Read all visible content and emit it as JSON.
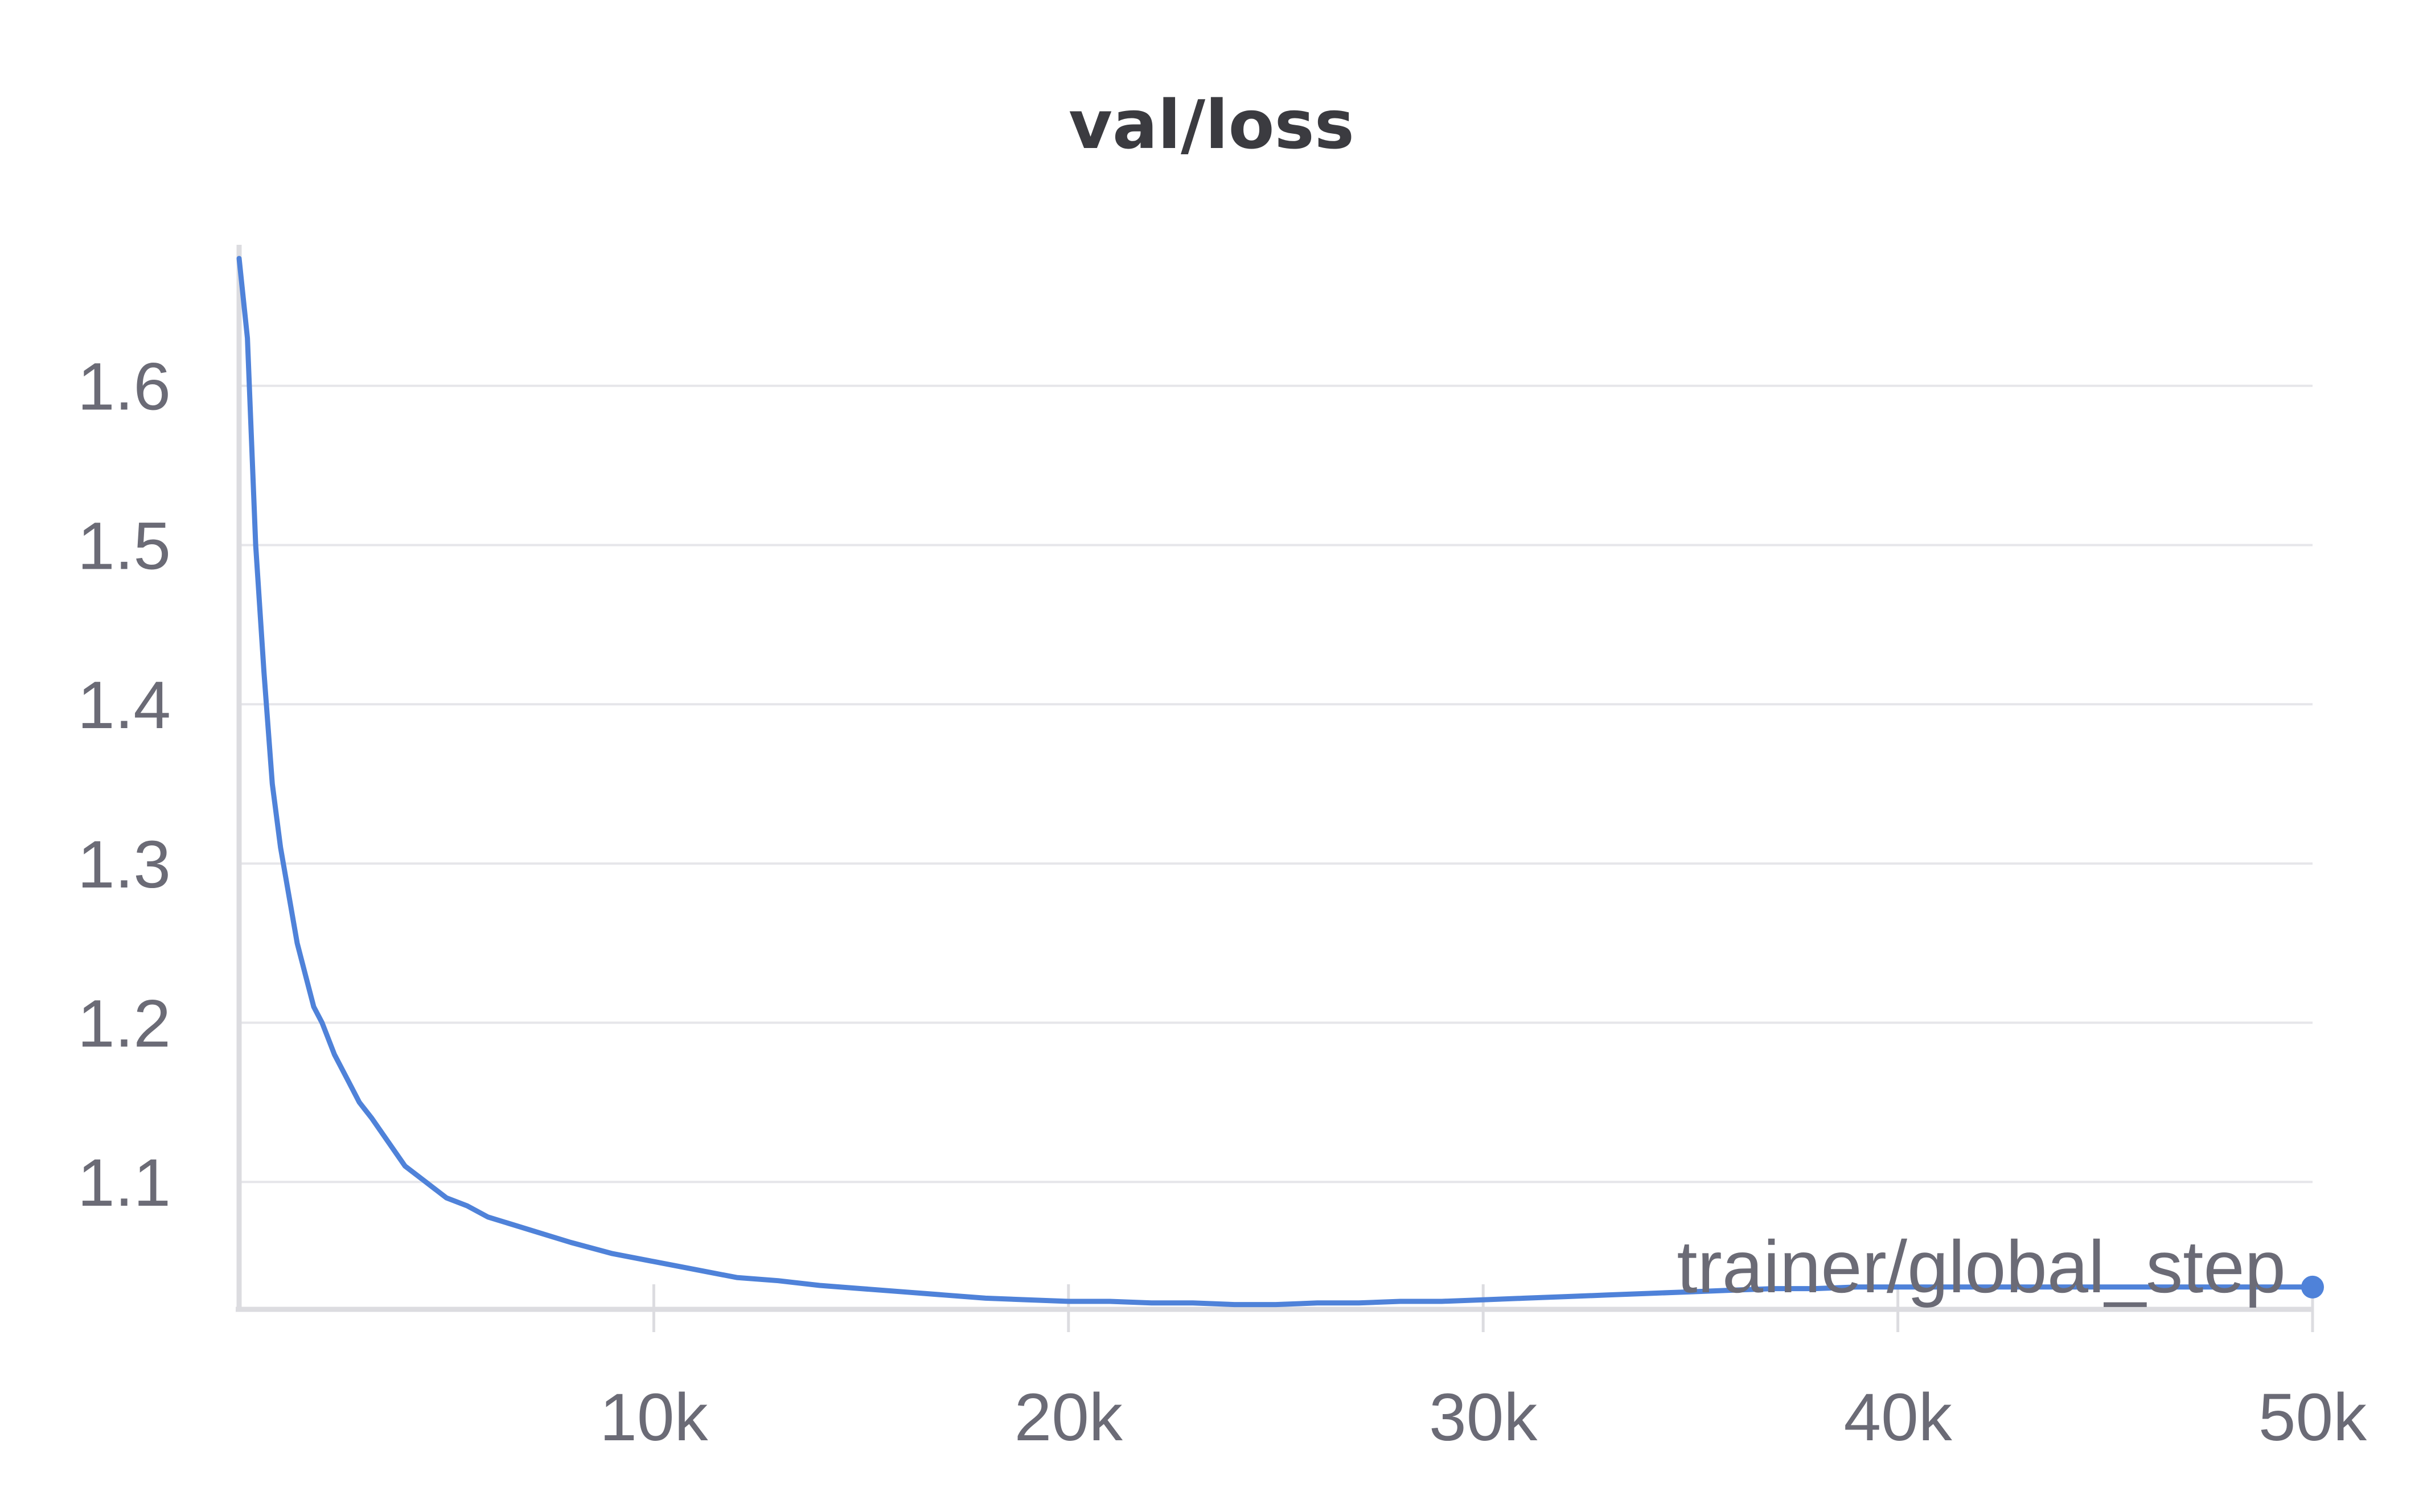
{
  "chart_data": {
    "type": "line",
    "title": "val/loss",
    "xlabel": "trainer/global_step",
    "ylabel": "",
    "xlim": [
      0,
      50000
    ],
    "ylim": [
      1.02,
      1.685
    ],
    "x_ticks": [
      {
        "value": 10000,
        "label": "10k"
      },
      {
        "value": 20000,
        "label": "20k"
      },
      {
        "value": 30000,
        "label": "30k"
      },
      {
        "value": 40000,
        "label": "40k"
      },
      {
        "value": 50000,
        "label": "50k"
      }
    ],
    "y_ticks": [
      {
        "value": 1.1,
        "label": "1.1"
      },
      {
        "value": 1.2,
        "label": "1.2"
      },
      {
        "value": 1.3,
        "label": "1.3"
      },
      {
        "value": 1.4,
        "label": "1.4"
      },
      {
        "value": 1.5,
        "label": "1.5"
      },
      {
        "value": 1.6,
        "label": "1.6"
      }
    ],
    "grid": "horizontal",
    "colors": {
      "line": "#4f82d9",
      "grid": "#e6e6ea",
      "axis": "#dcdce0",
      "text": "#6b6b76",
      "title": "#3b3b40"
    },
    "series": [
      {
        "x": [
          0,
          200,
          400,
          600,
          800,
          1000,
          1200,
          1400,
          1600,
          1800,
          2000,
          2300,
          2600,
          2900,
          3200,
          3600,
          4000,
          4500,
          5000,
          5500,
          6000,
          7000,
          8000,
          9000,
          10000,
          11000,
          12000,
          13000,
          14000,
          15000,
          16000,
          17000,
          18000,
          19000,
          20000,
          21000,
          22000,
          23000,
          24000,
          25000,
          26000,
          27000,
          28000,
          29000,
          30000,
          31000,
          32000,
          33000,
          34000,
          35000,
          36000,
          37000,
          38000,
          39000,
          40000,
          42000,
          44000,
          46000,
          48000,
          50000
        ],
        "y": [
          1.68,
          1.63,
          1.5,
          1.42,
          1.35,
          1.31,
          1.28,
          1.25,
          1.23,
          1.21,
          1.2,
          1.18,
          1.165,
          1.15,
          1.14,
          1.125,
          1.11,
          1.1,
          1.09,
          1.085,
          1.078,
          1.07,
          1.062,
          1.055,
          1.05,
          1.045,
          1.04,
          1.038,
          1.035,
          1.033,
          1.031,
          1.029,
          1.027,
          1.026,
          1.025,
          1.025,
          1.024,
          1.024,
          1.023,
          1.023,
          1.024,
          1.024,
          1.025,
          1.025,
          1.026,
          1.027,
          1.028,
          1.029,
          1.03,
          1.031,
          1.032,
          1.033,
          1.033,
          1.034,
          1.034,
          1.034,
          1.034,
          1.034,
          1.034,
          1.034
        ]
      }
    ]
  }
}
